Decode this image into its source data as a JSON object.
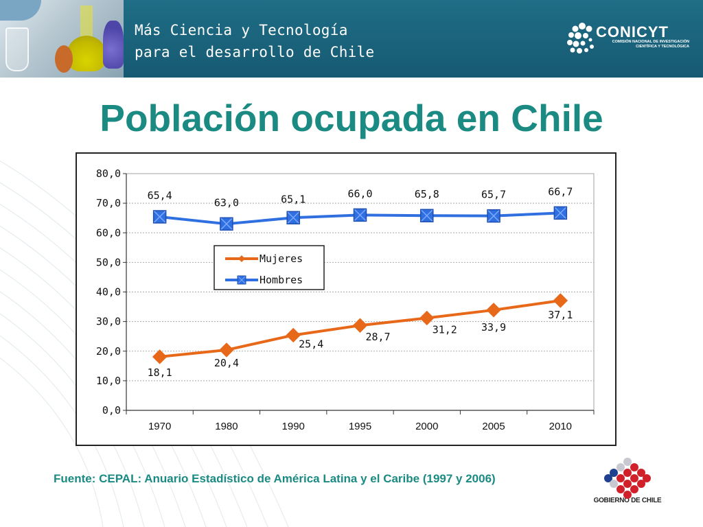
{
  "header": {
    "line1": "Más Ciencia y Tecnología",
    "line2": "para el desarrollo de Chile",
    "org_name": "CONICYT",
    "org_sub1": "COMISIÓN NACIONAL DE INVESTIGACIÓN",
    "org_sub2": "CIENTÍFICA Y TECNOLÓGICA"
  },
  "title": "Población ocupada en Chile",
  "source": "Fuente: CEPAL: Anuario Estadístico de América Latina y el Caribe (1997 y 2006)",
  "footer_logo_label": "GOBIERNO DE CHILE",
  "colors": {
    "mujeres": "#e8681a",
    "hombres": "#2f6fe0",
    "title": "#1a8a82",
    "banner": "#1f6d86"
  },
  "chart_data": {
    "type": "line",
    "categories": [
      "1970",
      "1980",
      "1990",
      "1995",
      "2000",
      "2005",
      "2010"
    ],
    "ylim": [
      0,
      80
    ],
    "yticks": [
      "0,0",
      "10,0",
      "20,0",
      "30,0",
      "40,0",
      "50,0",
      "60,0",
      "70,0",
      "80,0"
    ],
    "grid": true,
    "legend": "center-left",
    "series": [
      {
        "name": "Mujeres",
        "marker": "diamond",
        "values": [
          18.1,
          20.4,
          25.4,
          28.7,
          31.2,
          33.9,
          37.1
        ],
        "labels": [
          "18,1",
          "20,4",
          "25,4",
          "28,7",
          "31,2",
          "33,9",
          "37,1"
        ]
      },
      {
        "name": "Hombres",
        "marker": "square-x",
        "values": [
          65.4,
          63.0,
          65.1,
          66.0,
          65.8,
          65.7,
          66.7
        ],
        "labels": [
          "65,4",
          "63,0",
          "65,1",
          "66,0",
          "65,8",
          "65,7",
          "66,7"
        ]
      }
    ]
  }
}
